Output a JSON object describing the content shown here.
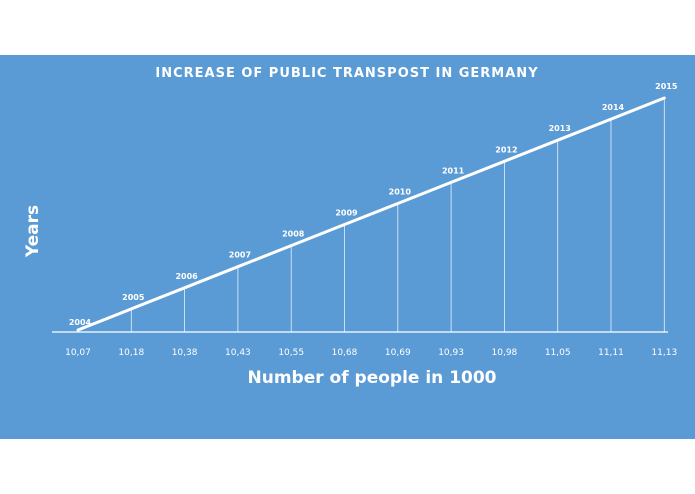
{
  "chart_data": {
    "type": "area",
    "title": "INCREASE OF PUBLIC TRANSPOST IN GERMANY",
    "xlabel": "Number of people in 1000",
    "ylabel": "Years",
    "categories": [
      "10,07",
      "10,18",
      "10,38",
      "10,43",
      "10,55",
      "10,68",
      "10,69",
      "10,93",
      "10,98",
      "11,05",
      "11,11",
      "11,13"
    ],
    "series": [
      {
        "name": "Years",
        "values": [
          2004,
          2005,
          2006,
          2007,
          2008,
          2009,
          2010,
          2011,
          2012,
          2013,
          2014,
          2015
        ]
      }
    ],
    "data_labels": [
      "2004",
      "2005",
      "2006",
      "2007",
      "2008",
      "2009",
      "2010",
      "2011",
      "2012",
      "2013",
      "2014",
      "2015"
    ],
    "ylim": [
      2004,
      2015
    ],
    "grid": false,
    "legend": "none",
    "colors": {
      "background": "#5b9bd5",
      "line": "#ffffff",
      "text": "#ffffff"
    }
  }
}
